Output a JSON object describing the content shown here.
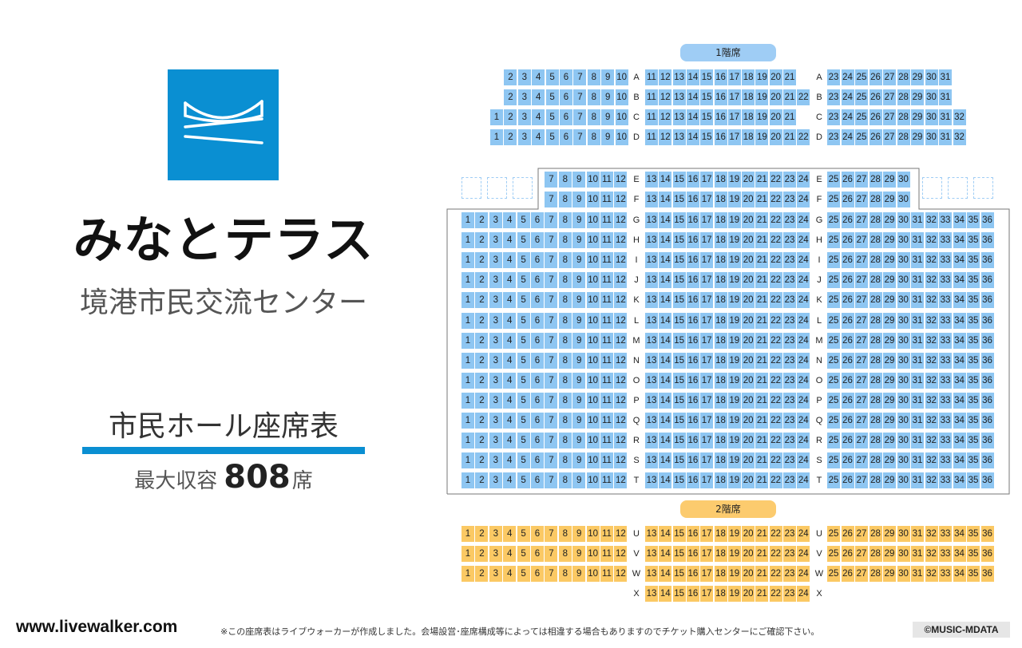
{
  "logo": {
    "icon": "minato-terrace-wave-logo",
    "color": "#0a8fd2"
  },
  "venue": {
    "name": "みなとテラス",
    "subtitle": "境港市民交流センター"
  },
  "hall": {
    "title": "市民ホール座席表",
    "capacity_label": "最大収容",
    "capacity_value": "808",
    "capacity_unit": "席"
  },
  "floors": {
    "first": "1階席",
    "second": "2階席"
  },
  "colors": {
    "first_floor_seat": "#8ec6f2",
    "second_floor_seat": "#fbc964",
    "accent": "#0a8fd2"
  },
  "seat_rows": [
    {
      "row": "A",
      "floor": 1,
      "left": "2-10",
      "center": "11-21",
      "right": "23-31"
    },
    {
      "row": "B",
      "floor": 1,
      "left": "2-10",
      "center": "11-22",
      "right": "23-31"
    },
    {
      "row": "C",
      "floor": 1,
      "left": "1-10",
      "center": "11-21",
      "right": "23-32"
    },
    {
      "row": "D",
      "floor": 1,
      "left": "1-10",
      "center": "11-22",
      "right": "23-32"
    },
    {
      "row": "E",
      "floor": 1,
      "left": "7-12",
      "center": "13-24",
      "right": "25-30"
    },
    {
      "row": "F",
      "floor": 1,
      "left": "7-12",
      "center": "13-24",
      "right": "25-30"
    },
    {
      "row": "G",
      "floor": 1,
      "left": "1-12",
      "center": "13-24",
      "right": "25-36"
    },
    {
      "row": "H",
      "floor": 1,
      "left": "1-12",
      "center": "13-24",
      "right": "25-36"
    },
    {
      "row": "I",
      "floor": 1,
      "left": "1-12",
      "center": "13-24",
      "right": "25-36"
    },
    {
      "row": "J",
      "floor": 1,
      "left": "1-12",
      "center": "13-24",
      "right": "25-36"
    },
    {
      "row": "K",
      "floor": 1,
      "left": "1-12",
      "center": "13-24",
      "right": "25-36"
    },
    {
      "row": "L",
      "floor": 1,
      "left": "1-12",
      "center": "13-24",
      "right": "25-36"
    },
    {
      "row": "M",
      "floor": 1,
      "left": "1-12",
      "center": "13-24",
      "right": "25-36"
    },
    {
      "row": "N",
      "floor": 1,
      "left": "1-12",
      "center": "13-24",
      "right": "25-36"
    },
    {
      "row": "O",
      "floor": 1,
      "left": "1-12",
      "center": "13-24",
      "right": "25-36"
    },
    {
      "row": "P",
      "floor": 1,
      "left": "1-12",
      "center": "13-24",
      "right": "25-36"
    },
    {
      "row": "Q",
      "floor": 1,
      "left": "1-12",
      "center": "13-24",
      "right": "25-36"
    },
    {
      "row": "R",
      "floor": 1,
      "left": "1-12",
      "center": "13-24",
      "right": "25-36"
    },
    {
      "row": "S",
      "floor": 1,
      "left": "1-12",
      "center": "13-24",
      "right": "25-36"
    },
    {
      "row": "T",
      "floor": 1,
      "left": "1-12",
      "center": "13-24",
      "right": "25-36"
    },
    {
      "row": "U",
      "floor": 2,
      "left": "1-12",
      "center": "13-24",
      "right": "25-36"
    },
    {
      "row": "V",
      "floor": 2,
      "left": "1-12",
      "center": "13-24",
      "right": "25-36"
    },
    {
      "row": "W",
      "floor": 2,
      "left": "1-12",
      "center": "13-24",
      "right": "25-36"
    },
    {
      "row": "X",
      "floor": 2,
      "left": "",
      "center": "13-24",
      "right": ""
    }
  ],
  "footer": {
    "site": "www.livewalker.com",
    "note": "※この座席表はライブウォーカーが作成しました。会場設営･座席構成等によっては相違する場合もありますのでチケット購入センターにご確認下さい。",
    "copyright": "©MUSIC-MDATA"
  }
}
